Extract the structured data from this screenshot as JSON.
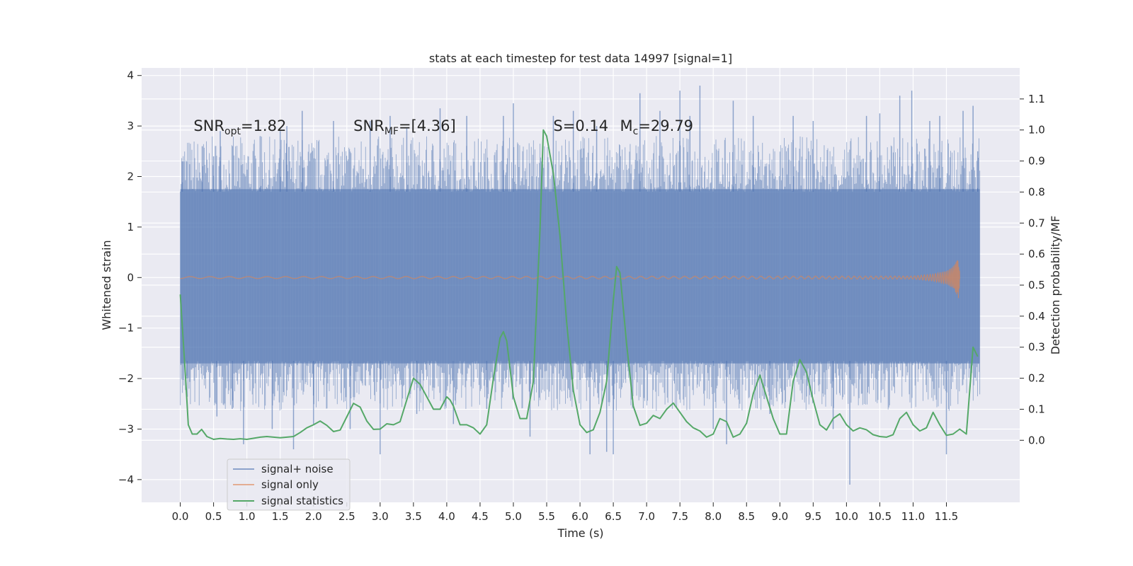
{
  "chart_data": {
    "type": "line",
    "title": "stats at each timestep for test data 14997 [signal=1]",
    "xlabel": "Time (s)",
    "ylabel": "Whitened strain",
    "y2label": "Detection probability/MF",
    "xlim": [
      -0.58,
      12.6
    ],
    "ylim": [
      -4.45,
      4.15
    ],
    "y2lim": [
      -0.2,
      1.2
    ],
    "xticks": [
      0.0,
      0.5,
      1.0,
      1.5,
      2.0,
      2.5,
      3.0,
      3.5,
      4.0,
      4.5,
      5.0,
      5.5,
      6.0,
      6.5,
      7.0,
      7.5,
      8.0,
      8.5,
      9.0,
      9.5,
      10.0,
      10.5,
      11.0,
      11.5
    ],
    "xtick_labels": [
      "0.0",
      "0.5",
      "1.0",
      "1.5",
      "2.0",
      "2.5",
      "3.0",
      "3.5",
      "4.0",
      "4.5",
      "5.0",
      "5.5",
      "6.0",
      "6.5",
      "7.0",
      "7.5",
      "8.0",
      "8.5",
      "9.0",
      "9.5",
      "10.0",
      "10.5",
      "11.0",
      "11.5"
    ],
    "yticks": [
      -4,
      -3,
      -2,
      -1,
      0,
      1,
      2,
      3,
      4
    ],
    "ytick_labels": [
      "−4",
      "−3",
      "−2",
      "−1",
      "0",
      "1",
      "2",
      "3",
      "4"
    ],
    "y2ticks": [
      0.0,
      0.1,
      0.2,
      0.3,
      0.4,
      0.5,
      0.6,
      0.7,
      0.8,
      0.9,
      1.0,
      1.1
    ],
    "y2tick_labels": [
      "0.0",
      "0.1",
      "0.2",
      "0.3",
      "0.4",
      "0.5",
      "0.6",
      "0.7",
      "0.8",
      "0.9",
      "1.0",
      "1.1"
    ],
    "grid": true,
    "legend_position": "bottom-left",
    "annotations": [
      {
        "text": "SNR_opt=1.82",
        "x": 0.2,
        "y": 3.0
      },
      {
        "text": "SNR_MF=[4.36]",
        "x": 2.6,
        "y": 3.0
      },
      {
        "text": "S=0.14",
        "x": 5.6,
        "y": 3.0
      },
      {
        "text": "M_c=29.79",
        "x": 6.6,
        "y": 3.0
      }
    ],
    "series": [
      {
        "name": "signal+ noise",
        "color": "#4c72b0",
        "axis": "left",
        "x_range": [
          0.0,
          12.0
        ],
        "band": {
          "typical_low": -1.7,
          "typical_high": 1.75
        },
        "spikes": [
          [
            0.03,
            2.3
          ],
          [
            0.1,
            -2.0
          ],
          [
            0.33,
            2.6
          ],
          [
            0.5,
            2.4
          ],
          [
            0.55,
            -2.75
          ],
          [
            0.6,
            2.9
          ],
          [
            0.78,
            -2.6
          ],
          [
            0.95,
            -3.3
          ],
          [
            1.2,
            2.8
          ],
          [
            1.38,
            -3.0
          ],
          [
            1.5,
            2.9
          ],
          [
            1.6,
            3.0
          ],
          [
            1.7,
            -3.4
          ],
          [
            1.83,
            3.3
          ],
          [
            2.0,
            -2.9
          ],
          [
            2.3,
            3.1
          ],
          [
            2.55,
            -3.0
          ],
          [
            2.85,
            3.1
          ],
          [
            3.0,
            -3.5
          ],
          [
            3.15,
            3.2
          ],
          [
            3.4,
            2.95
          ],
          [
            3.55,
            -2.7
          ],
          [
            3.9,
            3.35
          ],
          [
            4.1,
            -2.9
          ],
          [
            4.3,
            3.2
          ],
          [
            4.6,
            -2.6
          ],
          [
            4.85,
            3.2
          ],
          [
            5.0,
            3.45
          ],
          [
            5.25,
            -3.15
          ],
          [
            5.6,
            3.2
          ],
          [
            5.9,
            3.3
          ],
          [
            6.15,
            -3.5
          ],
          [
            6.25,
            3.0
          ],
          [
            6.4,
            -3.45
          ],
          [
            6.5,
            -3.5
          ],
          [
            6.9,
            3.65
          ],
          [
            7.2,
            3.3
          ],
          [
            7.5,
            3.7
          ],
          [
            7.65,
            3.2
          ],
          [
            7.8,
            3.8
          ],
          [
            8.0,
            -3.0
          ],
          [
            8.2,
            -3.3
          ],
          [
            8.3,
            3.5
          ],
          [
            8.6,
            3.2
          ],
          [
            8.85,
            -2.7
          ],
          [
            9.2,
            3.2
          ],
          [
            9.5,
            3.1
          ],
          [
            9.8,
            -3.0
          ],
          [
            10.05,
            -4.1
          ],
          [
            10.3,
            3.2
          ],
          [
            10.5,
            3.25
          ],
          [
            10.8,
            3.6
          ],
          [
            10.98,
            3.7
          ],
          [
            11.25,
            3.1
          ],
          [
            11.4,
            3.2
          ],
          [
            11.5,
            -3.5
          ],
          [
            11.75,
            3.3
          ],
          [
            11.9,
            3.4
          ],
          [
            11.97,
            2.5
          ]
        ]
      },
      {
        "name": "signal only",
        "color": "#dd8452",
        "axis": "left",
        "x": [
          0.0,
          11.0,
          11.3,
          11.5,
          11.6,
          11.65,
          11.68,
          11.7
        ],
        "envelope": [
          0.02,
          0.03,
          0.07,
          0.13,
          0.22,
          0.32,
          0.42,
          0.1
        ]
      },
      {
        "name": "signal statistics",
        "color": "#55a868",
        "axis": "right",
        "x": [
          0.0,
          0.08,
          0.12,
          0.18,
          0.25,
          0.32,
          0.4,
          0.5,
          0.6,
          0.7,
          0.8,
          0.9,
          1.0,
          1.2,
          1.3,
          1.5,
          1.7,
          1.8,
          1.9,
          2.0,
          2.1,
          2.2,
          2.3,
          2.4,
          2.5,
          2.6,
          2.7,
          2.8,
          2.9,
          3.0,
          3.1,
          3.2,
          3.3,
          3.4,
          3.5,
          3.6,
          3.7,
          3.8,
          3.9,
          4.0,
          4.05,
          4.1,
          4.2,
          4.3,
          4.4,
          4.5,
          4.6,
          4.7,
          4.8,
          4.85,
          4.9,
          5.0,
          5.1,
          5.2,
          5.3,
          5.4,
          5.45,
          5.5,
          5.6,
          5.7,
          5.8,
          5.9,
          6.0,
          6.1,
          6.2,
          6.3,
          6.4,
          6.5,
          6.55,
          6.6,
          6.7,
          6.8,
          6.9,
          7.0,
          7.1,
          7.2,
          7.3,
          7.4,
          7.5,
          7.6,
          7.7,
          7.8,
          7.9,
          8.0,
          8.1,
          8.2,
          8.3,
          8.4,
          8.5,
          8.6,
          8.7,
          8.8,
          8.9,
          9.0,
          9.1,
          9.2,
          9.3,
          9.4,
          9.5,
          9.6,
          9.7,
          9.8,
          9.9,
          10.0,
          10.1,
          10.2,
          10.3,
          10.4,
          10.5,
          10.6,
          10.7,
          10.8,
          10.9,
          11.0,
          11.1,
          11.2,
          11.3,
          11.4,
          11.5,
          11.6,
          11.7,
          11.8,
          11.9,
          11.97
        ],
        "y": [
          0.47,
          0.2,
          0.05,
          0.02,
          0.02,
          0.035,
          0.012,
          0.003,
          0.006,
          0.004,
          0.003,
          0.005,
          0.003,
          0.01,
          0.012,
          0.008,
          0.012,
          0.025,
          0.04,
          0.05,
          0.062,
          0.048,
          0.028,
          0.033,
          0.076,
          0.119,
          0.107,
          0.062,
          0.035,
          0.036,
          0.053,
          0.05,
          0.06,
          0.13,
          0.2,
          0.18,
          0.14,
          0.1,
          0.1,
          0.14,
          0.13,
          0.11,
          0.05,
          0.05,
          0.04,
          0.02,
          0.05,
          0.2,
          0.33,
          0.35,
          0.32,
          0.14,
          0.07,
          0.07,
          0.19,
          0.68,
          1.0,
          0.98,
          0.86,
          0.66,
          0.38,
          0.16,
          0.05,
          0.025,
          0.034,
          0.09,
          0.19,
          0.45,
          0.56,
          0.54,
          0.31,
          0.11,
          0.048,
          0.055,
          0.08,
          0.07,
          0.1,
          0.12,
          0.09,
          0.06,
          0.04,
          0.03,
          0.01,
          0.02,
          0.07,
          0.06,
          0.01,
          0.02,
          0.055,
          0.15,
          0.21,
          0.14,
          0.07,
          0.02,
          0.02,
          0.19,
          0.26,
          0.22,
          0.13,
          0.05,
          0.033,
          0.07,
          0.085,
          0.05,
          0.03,
          0.04,
          0.034,
          0.018,
          0.012,
          0.01,
          0.018,
          0.07,
          0.09,
          0.05,
          0.03,
          0.04,
          0.09,
          0.05,
          0.016,
          0.02,
          0.036,
          0.02,
          0.3,
          0.27
        ]
      }
    ]
  }
}
